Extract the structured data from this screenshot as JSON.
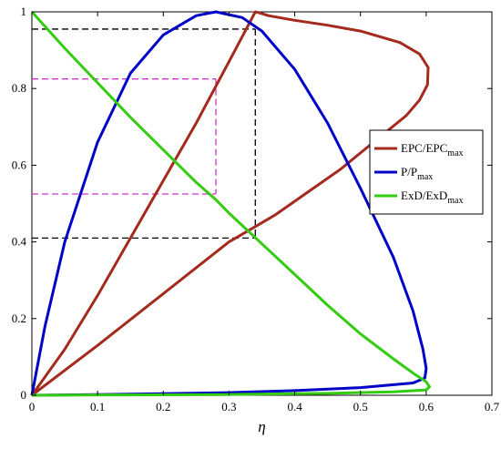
{
  "chart_data": {
    "type": "line",
    "xlabel": "η",
    "ylabel": "",
    "xlim": [
      0,
      0.7
    ],
    "ylim": [
      0,
      1
    ],
    "xticks": [
      "0",
      "0.1",
      "0.2",
      "0.3",
      "0.4",
      "0.5",
      "0.6",
      "0.7"
    ],
    "yticks": [
      "0",
      "0.2",
      "0.4",
      "0.6",
      "0.8",
      "1"
    ],
    "grid": false,
    "legend_position": "right",
    "series": [
      {
        "name": "EPC/EPC",
        "name_sub": "max",
        "color": "#a52a1e",
        "points": [
          [
            0,
            0
          ],
          [
            0.1,
            0.13
          ],
          [
            0.2,
            0.265
          ],
          [
            0.3,
            0.4
          ],
          [
            0.34,
            0.44
          ],
          [
            0.37,
            0.47
          ],
          [
            0.42,
            0.53
          ],
          [
            0.47,
            0.59
          ],
          [
            0.52,
            0.66
          ],
          [
            0.57,
            0.73
          ],
          [
            0.59,
            0.77
          ],
          [
            0.602,
            0.81
          ],
          [
            0.603,
            0.855
          ],
          [
            0.59,
            0.89
          ],
          [
            0.56,
            0.92
          ],
          [
            0.5,
            0.95
          ],
          [
            0.45,
            0.965
          ],
          [
            0.4,
            0.978
          ],
          [
            0.36,
            0.99
          ],
          [
            0.345,
            0.998
          ],
          [
            0.34,
            1.0
          ],
          [
            0.3,
            0.87
          ],
          [
            0.25,
            0.71
          ],
          [
            0.2,
            0.56
          ],
          [
            0.15,
            0.41
          ],
          [
            0.1,
            0.26
          ],
          [
            0.05,
            0.12
          ],
          [
            0,
            0
          ]
        ]
      },
      {
        "name": "P/P",
        "name_sub": "max",
        "color": "#0000c8",
        "points": [
          [
            0,
            0
          ],
          [
            0.02,
            0.18
          ],
          [
            0.05,
            0.4
          ],
          [
            0.1,
            0.66
          ],
          [
            0.15,
            0.84
          ],
          [
            0.2,
            0.94
          ],
          [
            0.25,
            0.99
          ],
          [
            0.28,
            1.0
          ],
          [
            0.32,
            0.985
          ],
          [
            0.35,
            0.95
          ],
          [
            0.4,
            0.85
          ],
          [
            0.45,
            0.71
          ],
          [
            0.5,
            0.54
          ],
          [
            0.55,
            0.36
          ],
          [
            0.58,
            0.22
          ],
          [
            0.595,
            0.12
          ],
          [
            0.6,
            0.07
          ],
          [
            0.598,
            0.045
          ],
          [
            0.58,
            0.032
          ],
          [
            0.5,
            0.02
          ],
          [
            0.4,
            0.012
          ],
          [
            0.3,
            0.007
          ],
          [
            0.2,
            0.004
          ],
          [
            0.1,
            0.002
          ],
          [
            0,
            0
          ]
        ]
      },
      {
        "name": "ExD/ExD",
        "name_sub": "max",
        "color": "#33cc10",
        "points": [
          [
            0,
            1.0
          ],
          [
            0.05,
            0.905
          ],
          [
            0.1,
            0.815
          ],
          [
            0.15,
            0.725
          ],
          [
            0.2,
            0.64
          ],
          [
            0.25,
            0.555
          ],
          [
            0.28,
            0.51
          ],
          [
            0.3,
            0.475
          ],
          [
            0.35,
            0.395
          ],
          [
            0.4,
            0.315
          ],
          [
            0.45,
            0.235
          ],
          [
            0.5,
            0.16
          ],
          [
            0.55,
            0.095
          ],
          [
            0.58,
            0.058
          ],
          [
            0.6,
            0.035
          ],
          [
            0.605,
            0.022
          ],
          [
            0.6,
            0.014
          ],
          [
            0.55,
            0.009
          ],
          [
            0.45,
            0.005
          ],
          [
            0.3,
            0.002
          ],
          [
            0.15,
            0.001
          ],
          [
            0,
            0
          ]
        ]
      }
    ],
    "guide_lines": [
      {
        "color": "#000000",
        "x": 0.34,
        "y_levels": [
          0.955,
          0.41
        ]
      },
      {
        "color": "#cc33cc",
        "x": 0.28,
        "y_levels": [
          0.825,
          0.525
        ]
      }
    ]
  }
}
